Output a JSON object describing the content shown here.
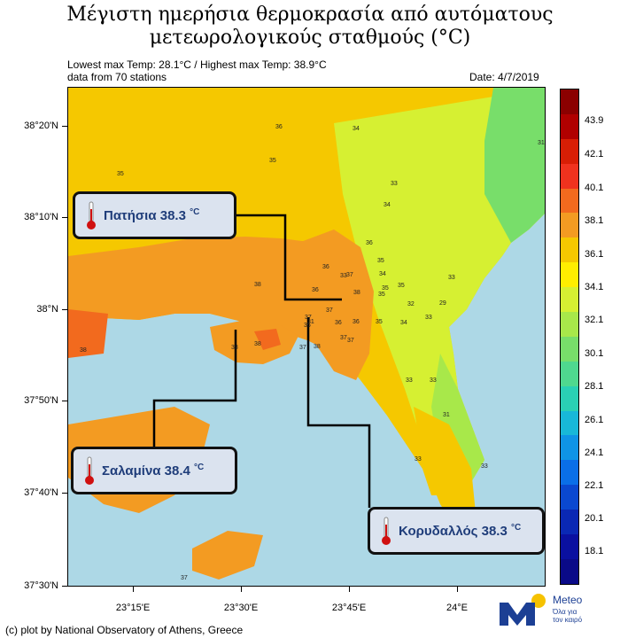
{
  "title": {
    "line1": "Μέγιστη ημερήσια θερμοκρασία από αυτόματους",
    "line2": "μετεωρολογικούς σταθμούς (°C)"
  },
  "header": {
    "left_line1": "Lowest max Temp: 28.1°C / Highest max Temp: 38.9°C",
    "left_line2": "data from 70 stations",
    "date": "Date: 4/7/2019"
  },
  "axes": {
    "y_labels": [
      "38°20'N",
      "38°10'N",
      "38°N",
      "37°50'N",
      "37°40'N",
      "37°30'N"
    ],
    "x_labels": [
      "23°15'E",
      "23°30'E",
      "23°45'E",
      "24°E"
    ]
  },
  "colorbar": {
    "labels": [
      "43.9",
      "42.1",
      "40.1",
      "38.1",
      "36.1",
      "34.1",
      "32.1",
      "30.1",
      "28.1",
      "26.1",
      "24.1",
      "22.1",
      "20.1",
      "18.1"
    ],
    "colors": [
      "#8b0000",
      "#b00000",
      "#d81e05",
      "#f0321e",
      "#f26a1e",
      "#f39b22",
      "#f5c800",
      "#ffee00",
      "#d6f032",
      "#a8e84a",
      "#78de6a",
      "#4fd88f",
      "#2ad0b4",
      "#18b8d8",
      "#0f94e6",
      "#0a6fe8",
      "#0a48d0",
      "#0a28b4",
      "#0a10a0",
      "#0a0a88"
    ]
  },
  "callouts": [
    {
      "name": "Πατήσια",
      "text": "Πατήσια 38.3",
      "unit": "°C"
    },
    {
      "name": "Σαλαμίνα",
      "text": "Σαλαμίνα 38.4",
      "unit": "°C"
    },
    {
      "name": "Κορυδαλλός",
      "text": "Κορυδαλλός 38.3",
      "unit": "°C"
    }
  ],
  "station_values": [
    "36",
    "34",
    "35",
    "31",
    "35",
    "33",
    "34",
    "36",
    "35",
    "33",
    "36",
    "33",
    "38",
    "36",
    "34",
    "35",
    "35",
    "37",
    "35",
    "33",
    "32",
    "29",
    "38",
    "37",
    "38",
    "36",
    "36",
    "33",
    "37",
    "37",
    "37",
    "38",
    "37",
    "36",
    "35",
    "34",
    "33",
    "38",
    "38",
    "33",
    "31",
    "33",
    "37",
    "31"
  ],
  "footer": "(c) plot by National Observatory of Athens, Greece",
  "logo": {
    "name": "Meteo",
    "tagline": "Όλα για τον καιρό"
  }
}
